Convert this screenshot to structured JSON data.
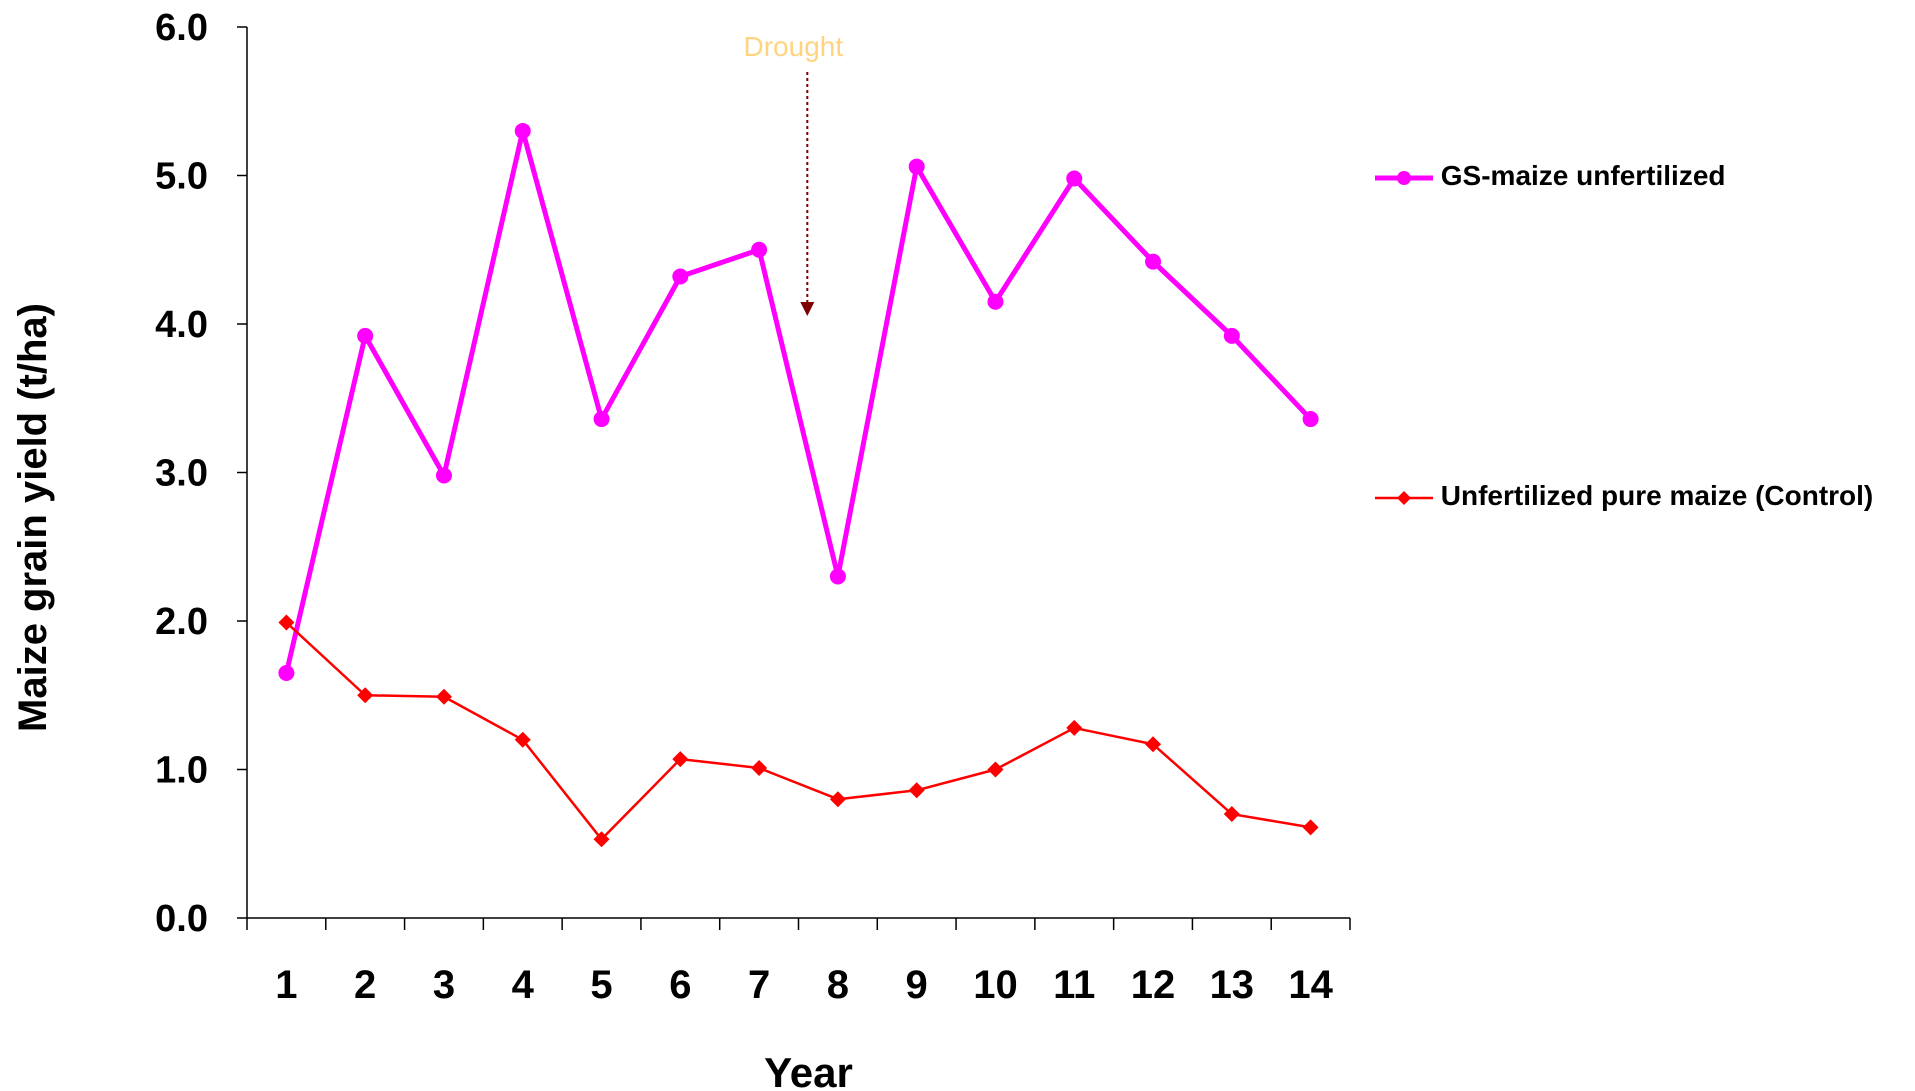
{
  "chart_data": {
    "type": "line",
    "xlabel": "Year",
    "ylabel": "Maize grain yield (t/ha)",
    "categories": [
      "1",
      "2",
      "3",
      "4",
      "5",
      "6",
      "7",
      "8",
      "9",
      "10",
      "11",
      "12",
      "13",
      "14"
    ],
    "ylim": [
      0,
      6
    ],
    "yticks": [
      "0.0",
      "1.0",
      "2.0",
      "3.0",
      "4.0",
      "5.0",
      "6.0"
    ],
    "grid": false,
    "legend_position": "right",
    "series": [
      {
        "name": "GS-maize unfertilized",
        "color": "#ff00ff",
        "marker": "circle",
        "values": [
          1.65,
          3.92,
          2.98,
          5.3,
          3.36,
          4.32,
          4.5,
          2.3,
          5.06,
          4.15,
          4.98,
          4.42,
          3.92,
          3.36
        ]
      },
      {
        "name": "Unfertilized pure maize (Control)",
        "color": "#ff0000",
        "marker": "diamond",
        "values": [
          1.99,
          1.5,
          1.49,
          1.2,
          0.53,
          1.07,
          1.01,
          0.8,
          0.86,
          1.0,
          1.28,
          1.17,
          0.7,
          0.61
        ]
      }
    ],
    "annotation": {
      "text": "Drought",
      "text_color": "#ffd47f",
      "arrow_color": "#7f0000"
    }
  }
}
